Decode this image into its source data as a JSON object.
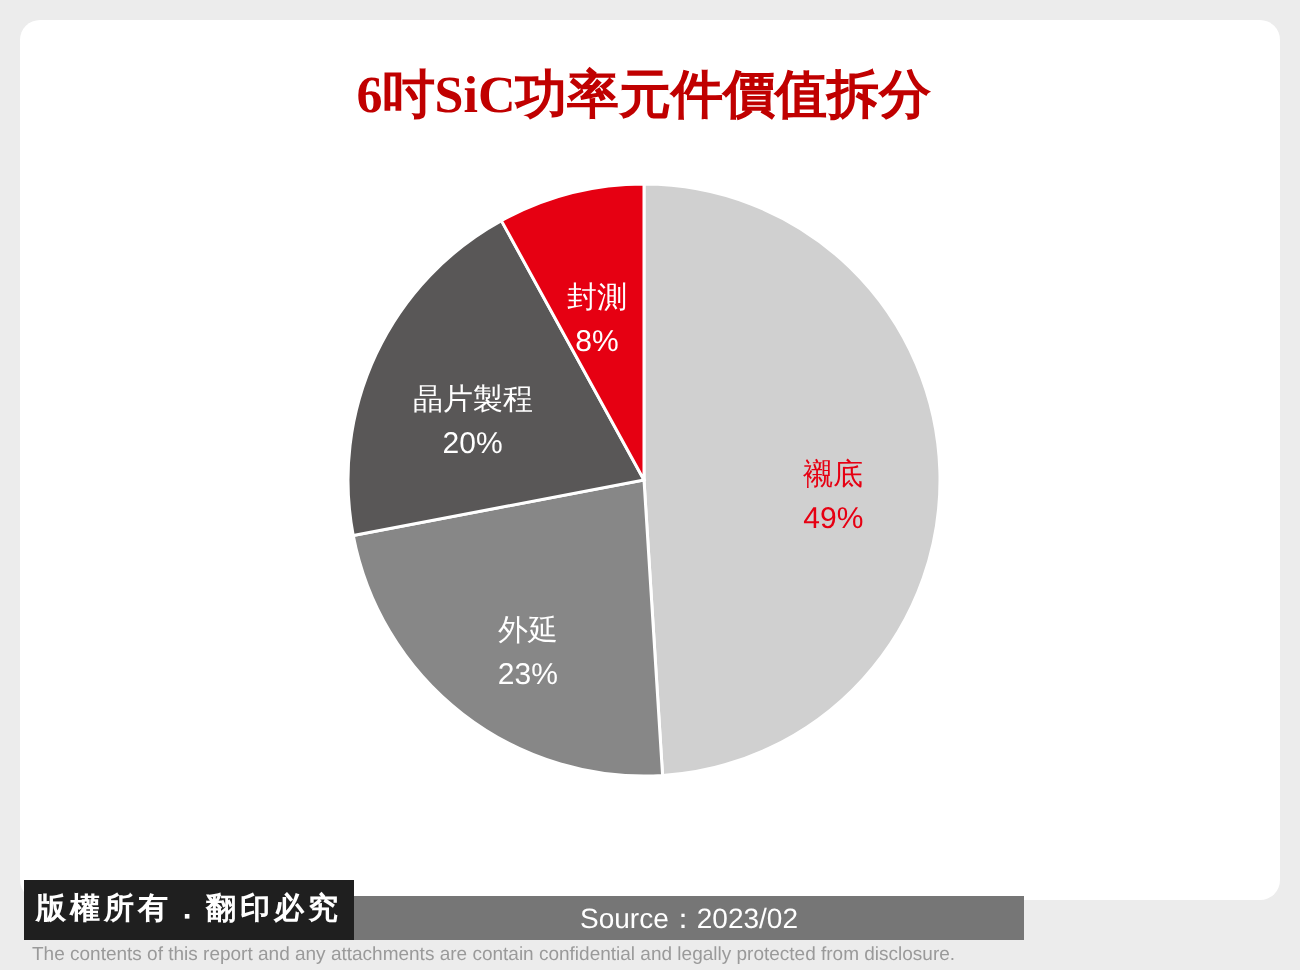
{
  "chart_data": {
    "type": "pie",
    "title": "6吋SiC功率元件價值拆分",
    "categories": [
      "襯底",
      "外延",
      "晶片製程",
      "封測"
    ],
    "values": [
      49,
      23,
      20,
      8
    ],
    "value_labels": [
      "49%",
      "23%",
      "20%",
      "8%"
    ],
    "colors": [
      "#d0d0d0",
      "#878787",
      "#595757",
      "#e60012"
    ],
    "legend": false,
    "annotations": [
      "版權所有．翻印必究",
      "Source：2023/02",
      "The contents of this report and any attachments are contain confidential and legally protected from disclosure."
    ]
  }
}
